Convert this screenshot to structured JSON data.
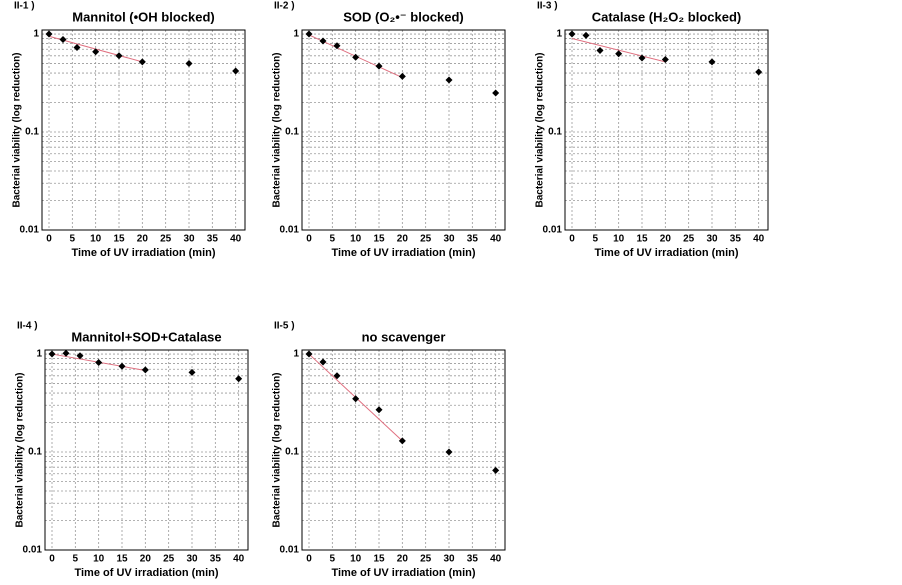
{
  "chart_data": [
    {
      "type": "scatter",
      "label": "II-1 )",
      "title": "Mannitol (•OH blocked)",
      "x_label": "Time of UV irradiation (min)",
      "y_label": "Bacterial viability (log reduction)",
      "x": [
        0,
        3,
        6,
        10,
        15,
        20,
        30,
        40
      ],
      "values": [
        1.0,
        0.88,
        0.73,
        0.66,
        0.6,
        0.52,
        0.5,
        0.42
      ],
      "color": "#000000",
      "trendline": {
        "x": [
          0,
          20
        ],
        "values": [
          0.95,
          0.52
        ],
        "color": "#e07080"
      },
      "xlim": [
        -1.5,
        42
      ],
      "xticks": [
        0,
        5,
        10,
        15,
        20,
        25,
        30,
        35,
        40
      ],
      "ylim": [
        0.01,
        1.1
      ],
      "yticks": [
        0.01,
        0.1,
        1
      ],
      "log_y": true,
      "grid": true,
      "yminor": [
        0.02,
        0.03,
        0.04,
        0.05,
        0.06,
        0.07,
        0.08,
        0.09,
        0.2,
        0.3,
        0.4,
        0.5,
        0.6,
        0.7,
        0.8,
        0.9
      ]
    },
    {
      "type": "scatter",
      "label": "II-2 )",
      "title": "SOD (O₂•⁻ blocked)",
      "x_label": "Time of UV irradiation (min)",
      "y_label": "Bacterial viability (log reduction)",
      "x": [
        0,
        3,
        6,
        10,
        15,
        20,
        30,
        40
      ],
      "values": [
        1.0,
        0.85,
        0.76,
        0.58,
        0.47,
        0.37,
        0.34,
        0.25
      ],
      "color": "#000000",
      "trendline": {
        "x": [
          0,
          20
        ],
        "values": [
          0.98,
          0.36
        ],
        "color": "#e07080"
      },
      "xlim": [
        -1.5,
        42
      ],
      "xticks": [
        0,
        5,
        10,
        15,
        20,
        25,
        30,
        35,
        40
      ],
      "ylim": [
        0.01,
        1.1
      ],
      "yticks": [
        0.01,
        0.1,
        1
      ],
      "log_y": true,
      "grid": true,
      "yminor": [
        0.02,
        0.03,
        0.04,
        0.05,
        0.06,
        0.07,
        0.08,
        0.09,
        0.2,
        0.3,
        0.4,
        0.5,
        0.6,
        0.7,
        0.8,
        0.9
      ]
    },
    {
      "type": "scatter",
      "label": "II-3 )",
      "title": "Catalase (H₂O₂ blocked)",
      "x_label": "Time of UV irradiation (min)",
      "y_label": "Bacterial viability (log reduction)",
      "x": [
        0,
        3,
        6,
        10,
        15,
        20,
        30,
        40
      ],
      "values": [
        1.0,
        0.97,
        0.68,
        0.63,
        0.57,
        0.55,
        0.52,
        0.41
      ],
      "color": "#000000",
      "trendline": {
        "x": [
          0,
          20
        ],
        "values": [
          0.9,
          0.52
        ],
        "color": "#e07080"
      },
      "xlim": [
        -1.5,
        42
      ],
      "xticks": [
        0,
        5,
        10,
        15,
        20,
        25,
        30,
        35,
        40
      ],
      "ylim": [
        0.01,
        1.1
      ],
      "yticks": [
        0.01,
        0.1,
        1
      ],
      "log_y": true,
      "grid": true,
      "yminor": [
        0.02,
        0.03,
        0.04,
        0.05,
        0.06,
        0.07,
        0.08,
        0.09,
        0.2,
        0.3,
        0.4,
        0.5,
        0.6,
        0.7,
        0.8,
        0.9
      ]
    },
    {
      "type": "scatter",
      "label": "II-4 )",
      "title": "Mannitol+SOD+Catalase",
      "x_label": "Time of UV irradiation (min)",
      "y_label": "Bacterial viability (log reduction)",
      "x": [
        0,
        3,
        6,
        10,
        15,
        20,
        30,
        40
      ],
      "values": [
        1.0,
        1.02,
        0.96,
        0.82,
        0.75,
        0.69,
        0.65,
        0.56
      ],
      "color": "#000000",
      "trendline": {
        "x": [
          0,
          20
        ],
        "values": [
          1.0,
          0.68
        ],
        "color": "#e07080"
      },
      "xlim": [
        -1.5,
        42
      ],
      "xticks": [
        0,
        5,
        10,
        15,
        20,
        25,
        30,
        35,
        40
      ],
      "ylim": [
        0.01,
        1.1
      ],
      "yticks": [
        0.01,
        0.1,
        1
      ],
      "log_y": true,
      "grid": true,
      "yminor": [
        0.02,
        0.03,
        0.04,
        0.05,
        0.06,
        0.07,
        0.08,
        0.09,
        0.2,
        0.3,
        0.4,
        0.5,
        0.6,
        0.7,
        0.8,
        0.9
      ]
    },
    {
      "type": "scatter",
      "label": "II-5 )",
      "title": "no scavenger",
      "x_label": "Time of UV irradiation (min)",
      "y_label": "Bacterial viability (log reduction)",
      "x": [
        0,
        3,
        6,
        10,
        15,
        20,
        30,
        40
      ],
      "values": [
        1.0,
        0.83,
        0.6,
        0.35,
        0.27,
        0.13,
        0.1,
        0.065
      ],
      "color": "#000000",
      "trendline": {
        "x": [
          0,
          20
        ],
        "values": [
          1.0,
          0.13
        ],
        "color": "#e07080"
      },
      "xlim": [
        -1.5,
        42
      ],
      "xticks": [
        0,
        5,
        10,
        15,
        20,
        25,
        30,
        35,
        40
      ],
      "ylim": [
        0.01,
        1.1
      ],
      "yticks": [
        0.01,
        0.1,
        1
      ],
      "log_y": true,
      "grid": true,
      "yminor": [
        0.02,
        0.03,
        0.04,
        0.05,
        0.06,
        0.07,
        0.08,
        0.09,
        0.2,
        0.3,
        0.4,
        0.5,
        0.6,
        0.7,
        0.8,
        0.9
      ]
    }
  ]
}
